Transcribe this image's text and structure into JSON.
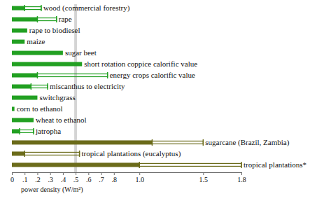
{
  "chart_data": {
    "type": "bar",
    "orientation": "horizontal",
    "x_label": "power density (W/m²)",
    "categories": [
      "wood (commercial forestry)",
      "rape",
      "rape to biodiesel",
      "maize",
      "sugar beet",
      "short rotation coppice calorific value",
      "energy crops calorific value",
      "miscanthus to electricity",
      "switchgrass",
      "corn to ethanol",
      "wheat to ethanol",
      "jatropha",
      "sugarcane (Brazil, Zambia)",
      "tropical plantations (eucalyptus)",
      "tropical plantations*"
    ],
    "values": [
      0.1,
      0.2,
      0.12,
      0.1,
      0.4,
      0.55,
      0.2,
      0.15,
      0.2,
      0.02,
      0.17,
      0.06,
      1.1,
      0.1,
      1.0
    ],
    "range_max": [
      0.23,
      0.35,
      null,
      null,
      null,
      null,
      0.75,
      0.28,
      null,
      null,
      null,
      0.17,
      1.5,
      0.53,
      1.8
    ],
    "colors": [
      "#22a022",
      "#22a022",
      "#22a022",
      "#22a022",
      "#22a022",
      "#22a022",
      "#22a022",
      "#22a022",
      "#22a022",
      "#22a022",
      "#22a022",
      "#22a022",
      "#6b6b1a",
      "#6b6b1a",
      "#6b6b1a"
    ],
    "reference_lines": [
      0.5
    ],
    "xlim": [
      0,
      1.8
    ],
    "xticks": [
      0,
      {
        "value": 0.1,
        "label": ".1"
      },
      {
        "value": 0.2,
        "label": ".2"
      },
      {
        "value": 0.3,
        "label": ".3"
      },
      {
        "value": 0.4,
        "label": ".4"
      },
      {
        "value": 0.5,
        "label": ".5"
      },
      {
        "value": 0.6,
        "label": ".6"
      },
      {
        "value": 0.7,
        "label": ".7"
      },
      {
        "value": 0.8,
        "label": ".8"
      },
      {
        "value": 1.0,
        "label": "1.0"
      },
      1.5,
      1.8
    ],
    "tick_labels": "x",
    "grid": false
  }
}
